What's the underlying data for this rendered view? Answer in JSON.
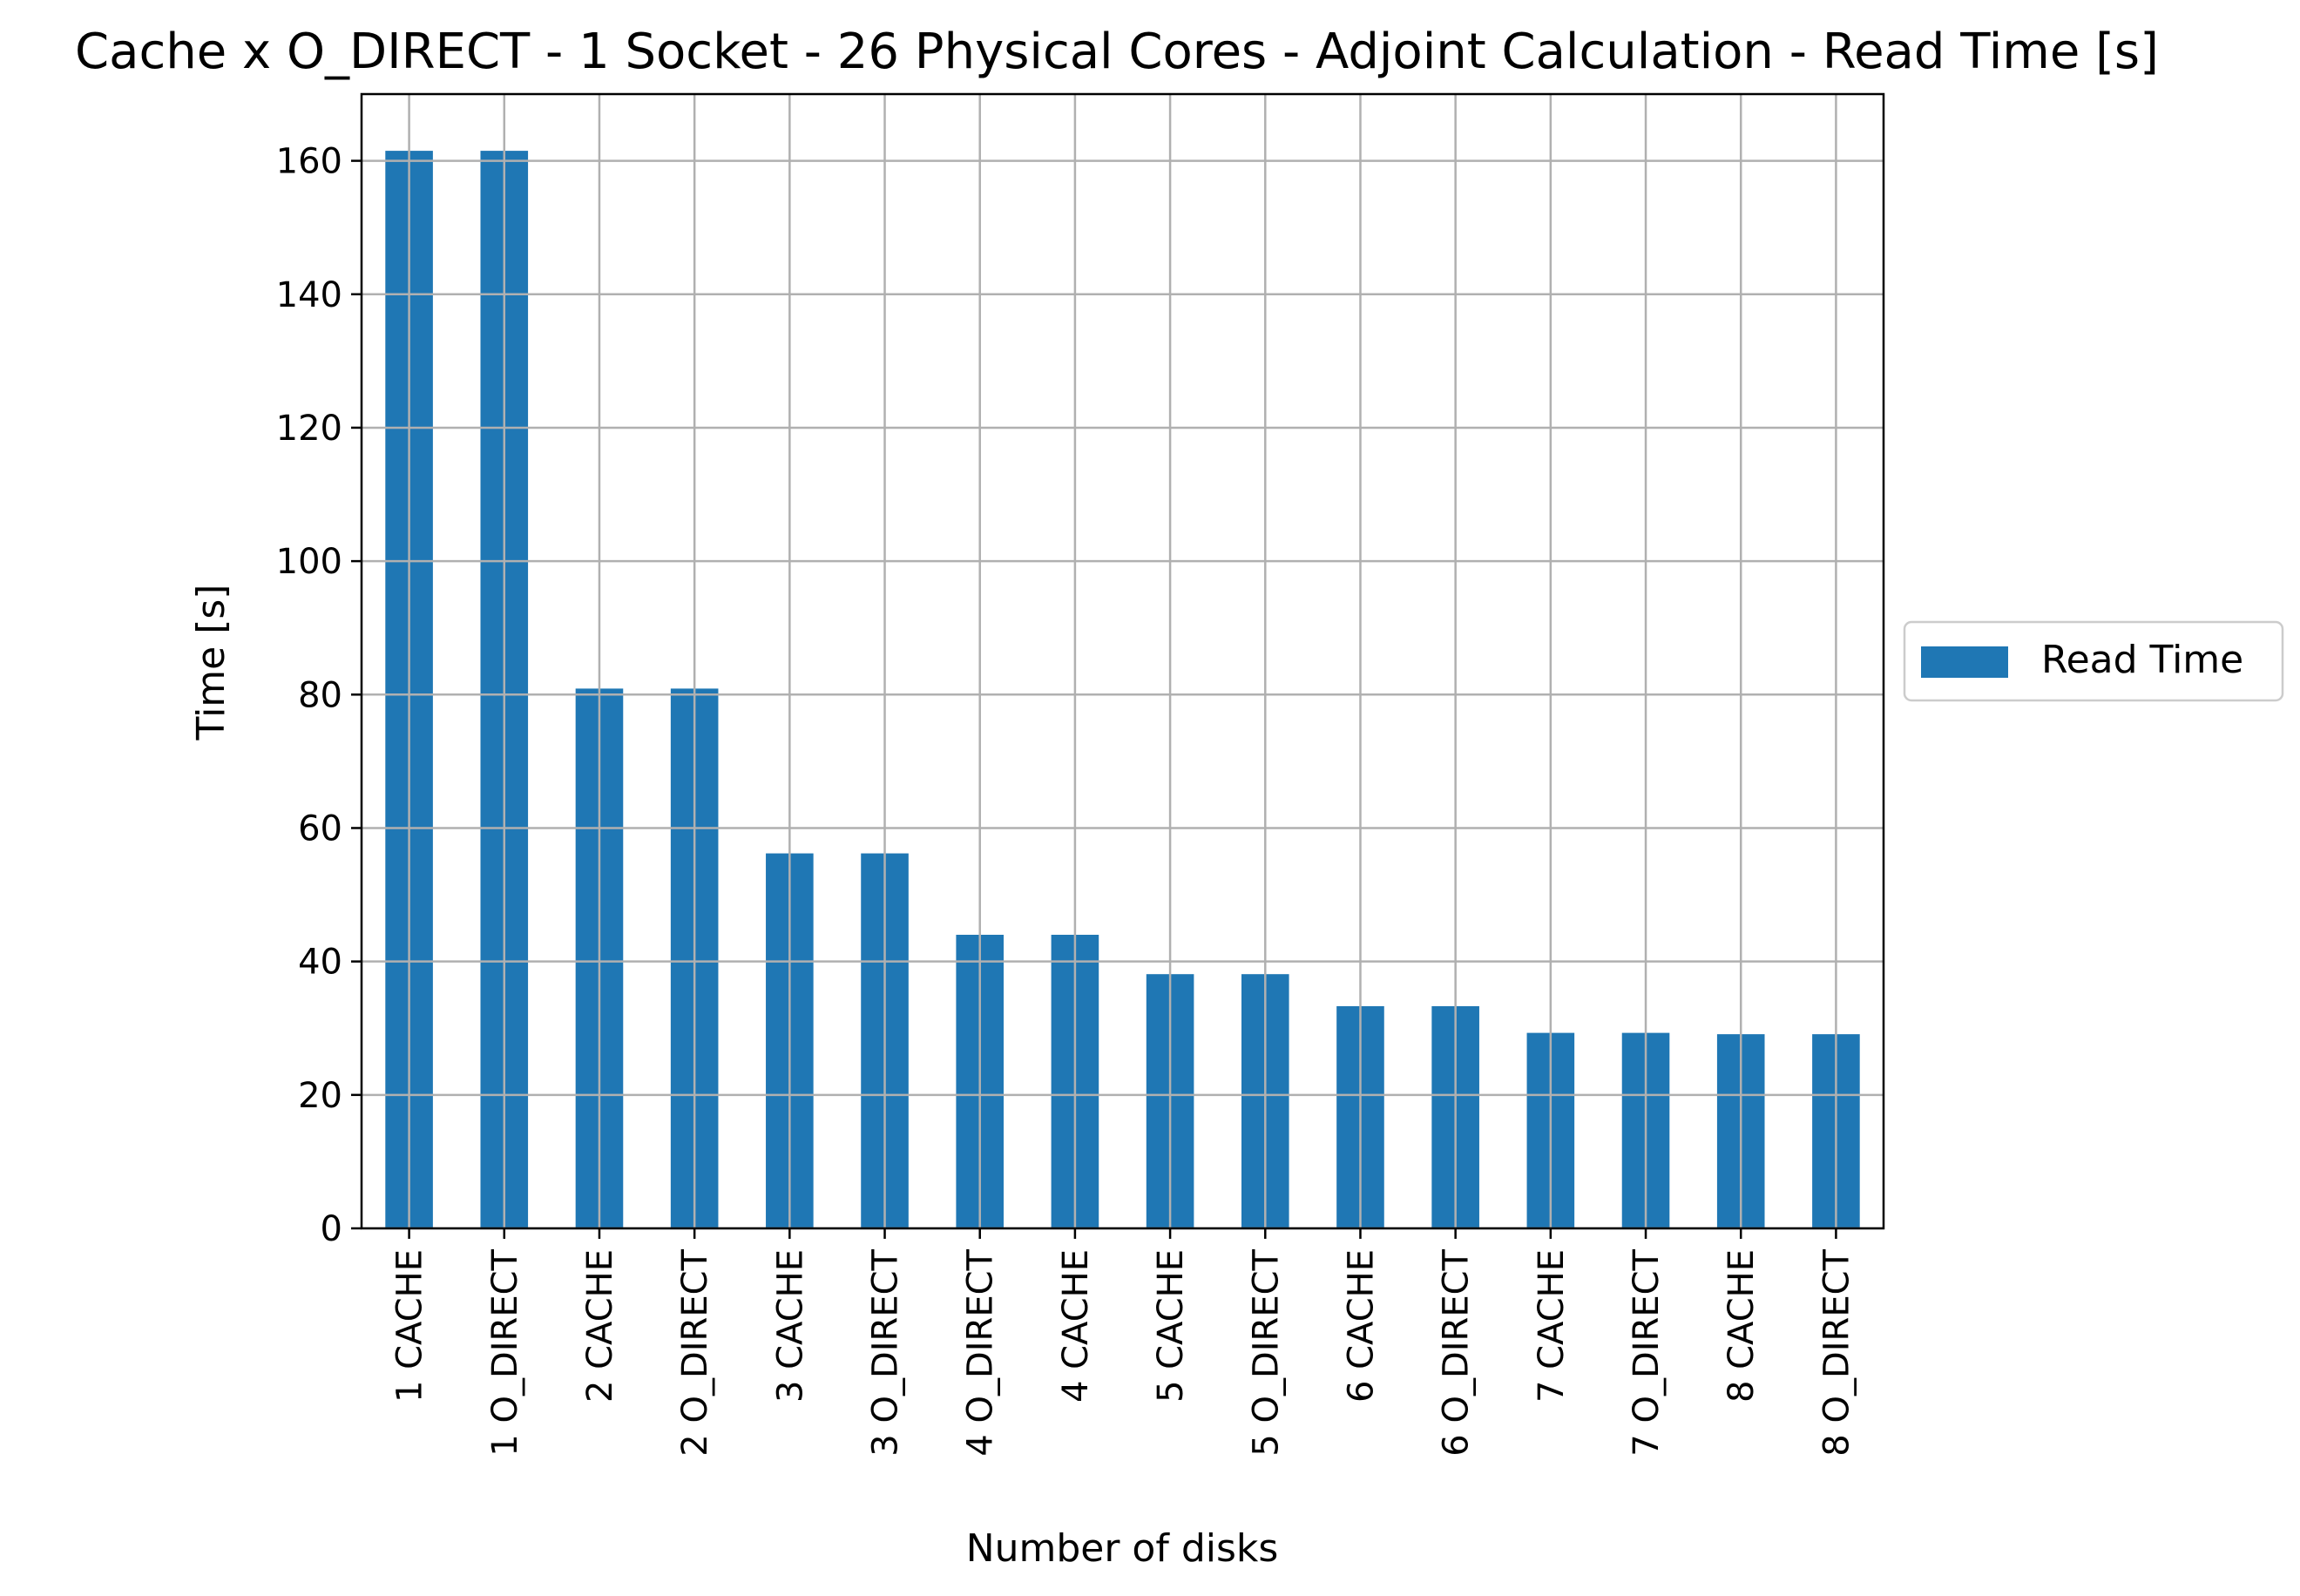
{
  "chart_data": {
    "type": "bar",
    "title": "Cache x O_DIRECT - 1 Socket - 26 Physical Cores - Adjoint Calculation - Read Time [s]",
    "xlabel": "Number of disks",
    "ylabel": "Time [s]",
    "categories": [
      "1 CACHE",
      "1 O_DIRECT",
      "2 CACHE",
      "2 O_DIRECT",
      "3 CACHE",
      "3 O_DIRECT",
      "4 O_DIRECT",
      "4 CACHE",
      "5 CACHE",
      "5 O_DIRECT",
      "6 CACHE",
      "6 O_DIRECT",
      "7 CACHE",
      "7 O_DIRECT",
      "8 CACHE",
      "8 O_DIRECT"
    ],
    "series": [
      {
        "name": "Read Time",
        "color": "#1f77b4",
        "values": [
          161.5,
          161.5,
          80.9,
          80.9,
          56.2,
          56.2,
          44.0,
          44.0,
          38.1,
          38.1,
          33.3,
          33.3,
          29.3,
          29.3,
          29.1,
          29.1
        ]
      }
    ],
    "ylim": [
      0,
      170
    ],
    "yticks": [
      0,
      20,
      40,
      60,
      80,
      100,
      120,
      140,
      160
    ],
    "grid": true,
    "legend_position": "right-center"
  }
}
